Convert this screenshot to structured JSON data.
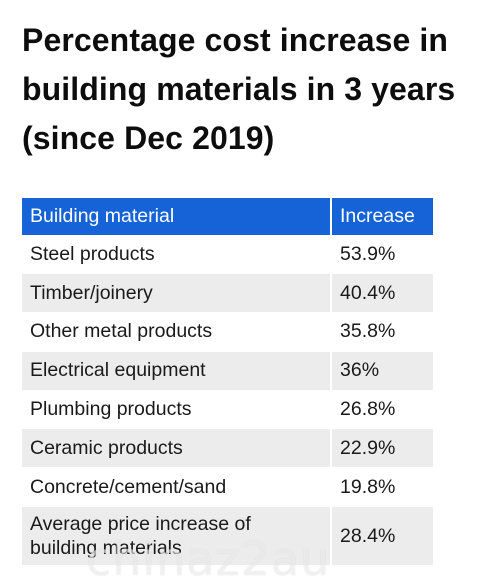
{
  "title": "Percentage cost increase in building materials in 3 years (since Dec 2019)",
  "chart_data": {
    "type": "table",
    "columns": [
      "Building material",
      "Increase"
    ],
    "rows": [
      {
        "material": "Steel products",
        "increase": "53.9%"
      },
      {
        "material": "Timber/joinery",
        "increase": "40.4%"
      },
      {
        "material": "Other metal products",
        "increase": "35.8%"
      },
      {
        "material": "Electrical equipment",
        "increase": "36%"
      },
      {
        "material": "Plumbing products",
        "increase": "26.8%"
      },
      {
        "material": "Ceramic products",
        "increase": "22.9%"
      },
      {
        "material": "Concrete/cement/sand",
        "increase": "19.8%"
      },
      {
        "material": "Average price increase of building materials",
        "increase": "28.4%"
      }
    ]
  },
  "watermark": "chinaz2au",
  "colors": {
    "header_bg": "#1563d6",
    "stripe_bg": "#ececec"
  }
}
